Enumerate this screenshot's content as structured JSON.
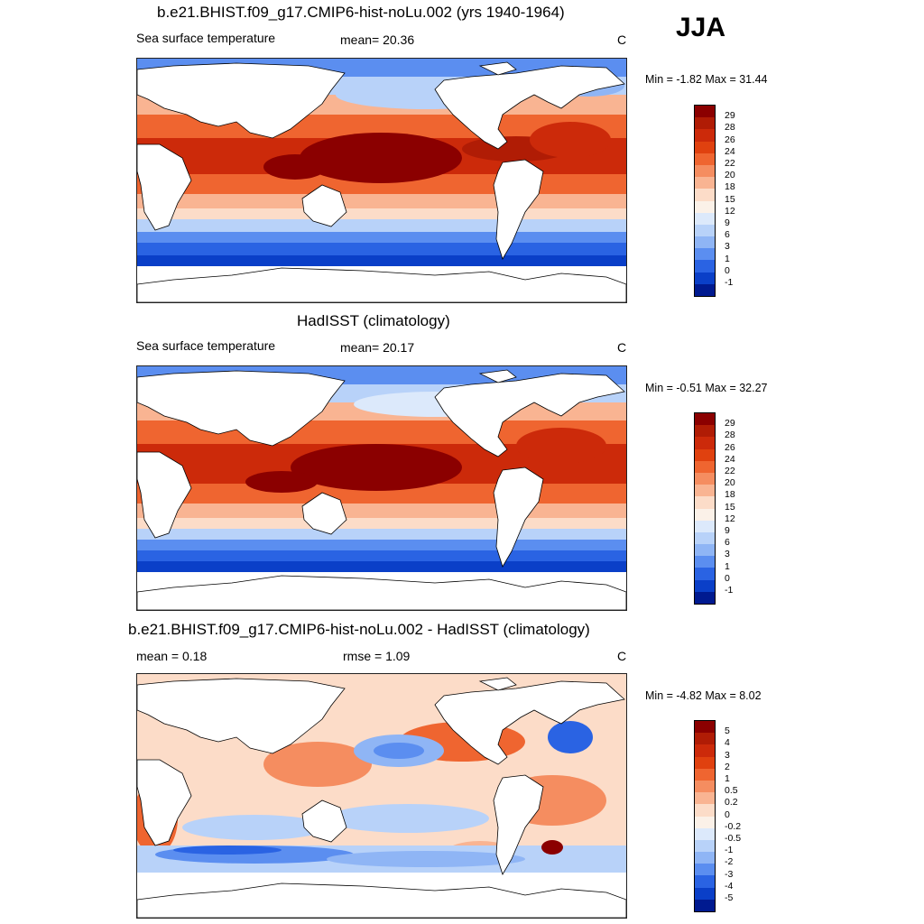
{
  "season": "JJA",
  "panels": [
    {
      "title": "b.e21.BHIST.f09_g17.CMIP6-hist-noLu.002 (yrs 1940-1964)",
      "left_label": "Sea surface temperature",
      "mid_label": "mean=  20.36",
      "right_label": "C",
      "minmax": "Min =  -1.82 Max =  31.44"
    },
    {
      "title": "HadISST (climatology)",
      "left_label": "Sea surface temperature",
      "mid_label": "mean=  20.17",
      "right_label": "C",
      "minmax": "Min =  -0.51 Max =  32.27"
    },
    {
      "title": "b.e21.BHIST.f09_g17.CMIP6-hist-noLu.002 - HadISST (climatology)",
      "left_label": "mean =   0.18",
      "mid_label": "rmse =   1.09",
      "right_label": "C",
      "minmax": "Min =  -4.82 Max =   8.02"
    }
  ],
  "sst_colorbar": {
    "labels": [
      "29",
      "28",
      "26",
      "24",
      "22",
      "20",
      "18",
      "15",
      "12",
      "9",
      "6",
      "3",
      "1",
      "0",
      "-1"
    ],
    "colors": [
      "#8b0000",
      "#b01c05",
      "#cc2a0a",
      "#e0410f",
      "#ef6530",
      "#f58d60",
      "#f9b492",
      "#fcdcc8",
      "#fbf1e8",
      "#dce9fb",
      "#b8d2f9",
      "#8fb5f5",
      "#5b8ef0",
      "#2a63e3",
      "#0a3fc8",
      "#001a90"
    ]
  },
  "diff_colorbar": {
    "labels": [
      "5",
      "4",
      "3",
      "2",
      "1",
      "0.5",
      "0.2",
      "0",
      "-0.2",
      "-0.5",
      "-1",
      "-2",
      "-3",
      "-4",
      "-5"
    ],
    "colors": [
      "#8b0000",
      "#b01c05",
      "#cc2a0a",
      "#e0410f",
      "#ef6530",
      "#f58d60",
      "#f9b492",
      "#fcdcc8",
      "#fbf1e8",
      "#dce9fb",
      "#b8d2f9",
      "#8fb5f5",
      "#5b8ef0",
      "#2a63e3",
      "#0a3fc8",
      "#001a90"
    ]
  }
}
